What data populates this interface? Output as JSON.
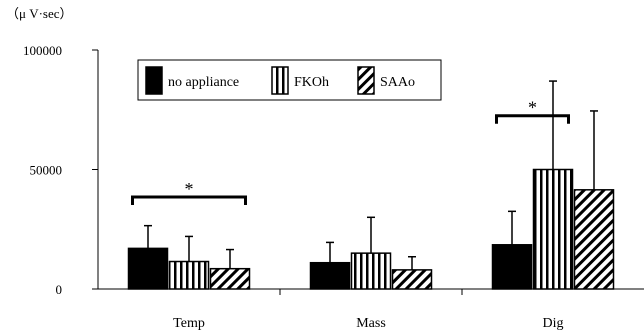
{
  "chart_data": {
    "type": "bar",
    "unit_label": "（μ V·sec）",
    "categories": [
      "Temp",
      "Mass",
      "Dig"
    ],
    "ylim": [
      0,
      100000
    ],
    "yticks": [
      0,
      50000,
      100000
    ],
    "ytick_labels": [
      "0",
      "50000",
      "100000"
    ],
    "grid": false,
    "legend_position": "top-left",
    "series": [
      {
        "name": "no appliance",
        "pattern": "solid",
        "color": "#000000",
        "values": [
          17000,
          11000,
          18500
        ],
        "errors": [
          9500,
          8500,
          14000
        ]
      },
      {
        "name": "FKOh",
        "pattern": "vertical-stripes",
        "color": "#000000",
        "values": [
          11500,
          15000,
          50000
        ],
        "errors": [
          10500,
          15000,
          37000
        ]
      },
      {
        "name": "SAAo",
        "pattern": "diagonal-stripes",
        "color": "#000000",
        "values": [
          8500,
          8000,
          41500
        ],
        "errors": [
          8000,
          5500,
          33000
        ]
      }
    ],
    "significance": [
      {
        "category": "Temp",
        "from_series": 0,
        "to_series": 2,
        "label": "*"
      },
      {
        "category": "Dig",
        "from_series": 0,
        "to_series": 1,
        "label": "*"
      }
    ]
  }
}
